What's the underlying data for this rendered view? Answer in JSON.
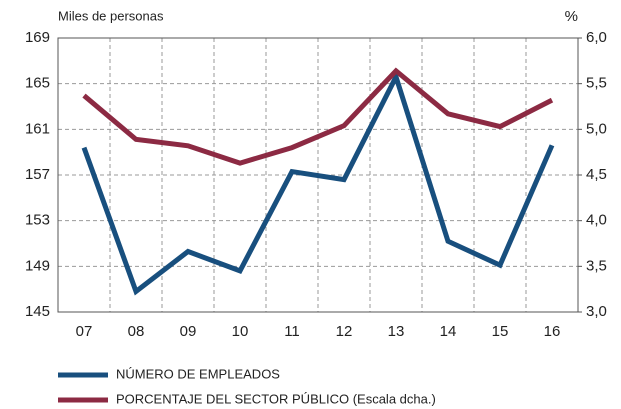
{
  "chart_data": {
    "type": "line",
    "y_label": "Miles de personas",
    "y2_label": "%",
    "categories": [
      "07",
      "08",
      "09",
      "10",
      "11",
      "12",
      "13",
      "14",
      "15",
      "16"
    ],
    "series": [
      {
        "name": "NÚMERO DE EMPLEADOS",
        "color": "#184f7e",
        "values": [
          159.4,
          146.8,
          150.3,
          148.6,
          157.3,
          156.6,
          165.6,
          151.2,
          149.1,
          159.6
        ]
      },
      {
        "name": "PORCENTAJE DEL SECTOR PÚBLICO (Escala dcha.)",
        "color": "#8c2a43",
        "axis": "y2",
        "values": [
          5.37,
          4.89,
          4.82,
          4.63,
          4.8,
          5.04,
          5.64,
          5.17,
          5.03,
          5.32
        ]
      }
    ],
    "ylim": [
      145,
      169
    ],
    "yticks": [
      145,
      149,
      153,
      157,
      161,
      165,
      169
    ],
    "y2lim": [
      3,
      6
    ],
    "y2ticks": [
      {
        "value": 3,
        "label": "3,0"
      },
      {
        "value": 3.5,
        "label": "3,5"
      },
      {
        "value": 4,
        "label": "4,0"
      },
      {
        "value": 4.5,
        "label": "4,5"
      },
      {
        "value": 5,
        "label": "5,0"
      },
      {
        "value": 5.5,
        "label": "5,5"
      },
      {
        "value": 6,
        "label": "6,0"
      }
    ],
    "grid": true
  }
}
